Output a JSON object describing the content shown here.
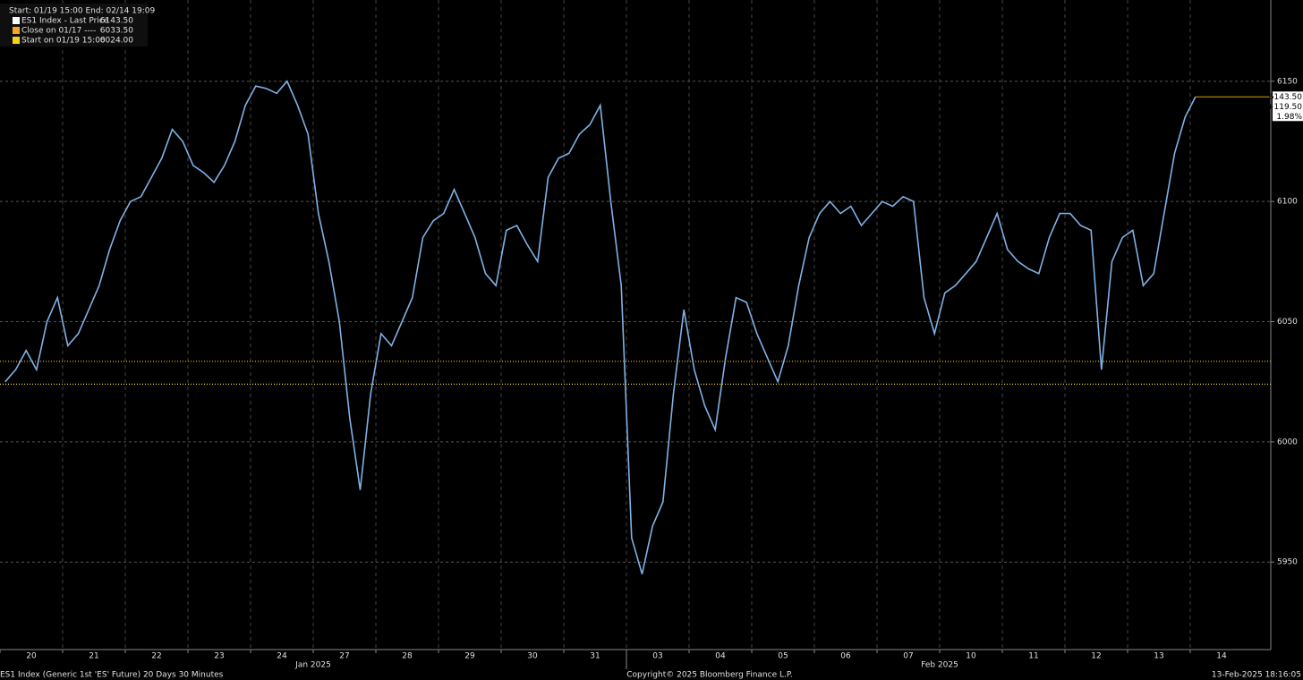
{
  "chart_data": {
    "type": "line",
    "header": "Start: 01/19 15:00 End: 02/14 19:09",
    "day_labels": [
      "20",
      "21",
      "22",
      "23",
      "24",
      "27",
      "28",
      "29",
      "30",
      "31",
      "03",
      "04",
      "05",
      "06",
      "07",
      "10",
      "11",
      "12",
      "13",
      "14"
    ],
    "month_labels": [
      "Jan 2025",
      "Feb 2025"
    ],
    "series": [
      {
        "name": "ES1 Index - Last Price",
        "color": "#7fb2e5",
        "last": {
          "value": 6143.5,
          "label": "6143.50"
        },
        "values": [
          6025,
          6030,
          6038,
          6030,
          6050,
          6060,
          6040,
          6045,
          6055,
          6065,
          6080,
          6092,
          6100,
          6102,
          6110,
          6118,
          6130,
          6125,
          6115,
          6112,
          6108,
          6115,
          6125,
          6140,
          6148,
          6147,
          6145,
          6150,
          6140,
          6128,
          6095,
          6075,
          6050,
          6010,
          5980,
          6020,
          6045,
          6040,
          6050,
          6060,
          6085,
          6092,
          6095,
          6105,
          6095,
          6085,
          6070,
          6065,
          6088,
          6090,
          6082,
          6075,
          6110,
          6118,
          6120,
          6128,
          6132,
          6140,
          6100,
          6065,
          5960,
          5945,
          5965,
          5975,
          6020,
          6055,
          6030,
          6015,
          6005,
          6035,
          6060,
          6058,
          6045,
          6035,
          6025,
          6040,
          6065,
          6085,
          6095,
          6100,
          6095,
          6098,
          6090,
          6095,
          6100,
          6098,
          6102,
          6100,
          6060,
          6045,
          6062,
          6065,
          6070,
          6075,
          6085,
          6095,
          6080,
          6075,
          6072,
          6070,
          6085,
          6095,
          6095,
          6090,
          6088,
          6030,
          6075,
          6085,
          6088,
          6065,
          6070,
          6095,
          6120,
          6135,
          6143.5
        ]
      }
    ],
    "reference_lines": [
      {
        "name": "Close on 01/17 ----",
        "color": "#f5a623",
        "value": {
          "value": 6033.5,
          "label": "6033.50"
        }
      },
      {
        "name": "Start on 01/19 15:00",
        "color": "#f2d21b",
        "value": {
          "value": 6024,
          "label": "6024.00"
        }
      }
    ],
    "change": {
      "value": 119.5,
      "label": "+119.50"
    },
    "change_pct": {
      "value": 1.98,
      "label": "1.98%"
    },
    "ylim": [
      5913.6,
      6183.8
    ],
    "yticks": [
      5950,
      6000,
      6050,
      6100,
      6150
    ],
    "grid": true,
    "footer_left": "ES1 Index (Generic 1st 'ES' Future) 20 Days 30 Minutes",
    "footer_center": "Copyright© 2025 Bloomberg Finance L.P.",
    "footer_right": "13-Feb-2025 18:16:05"
  }
}
